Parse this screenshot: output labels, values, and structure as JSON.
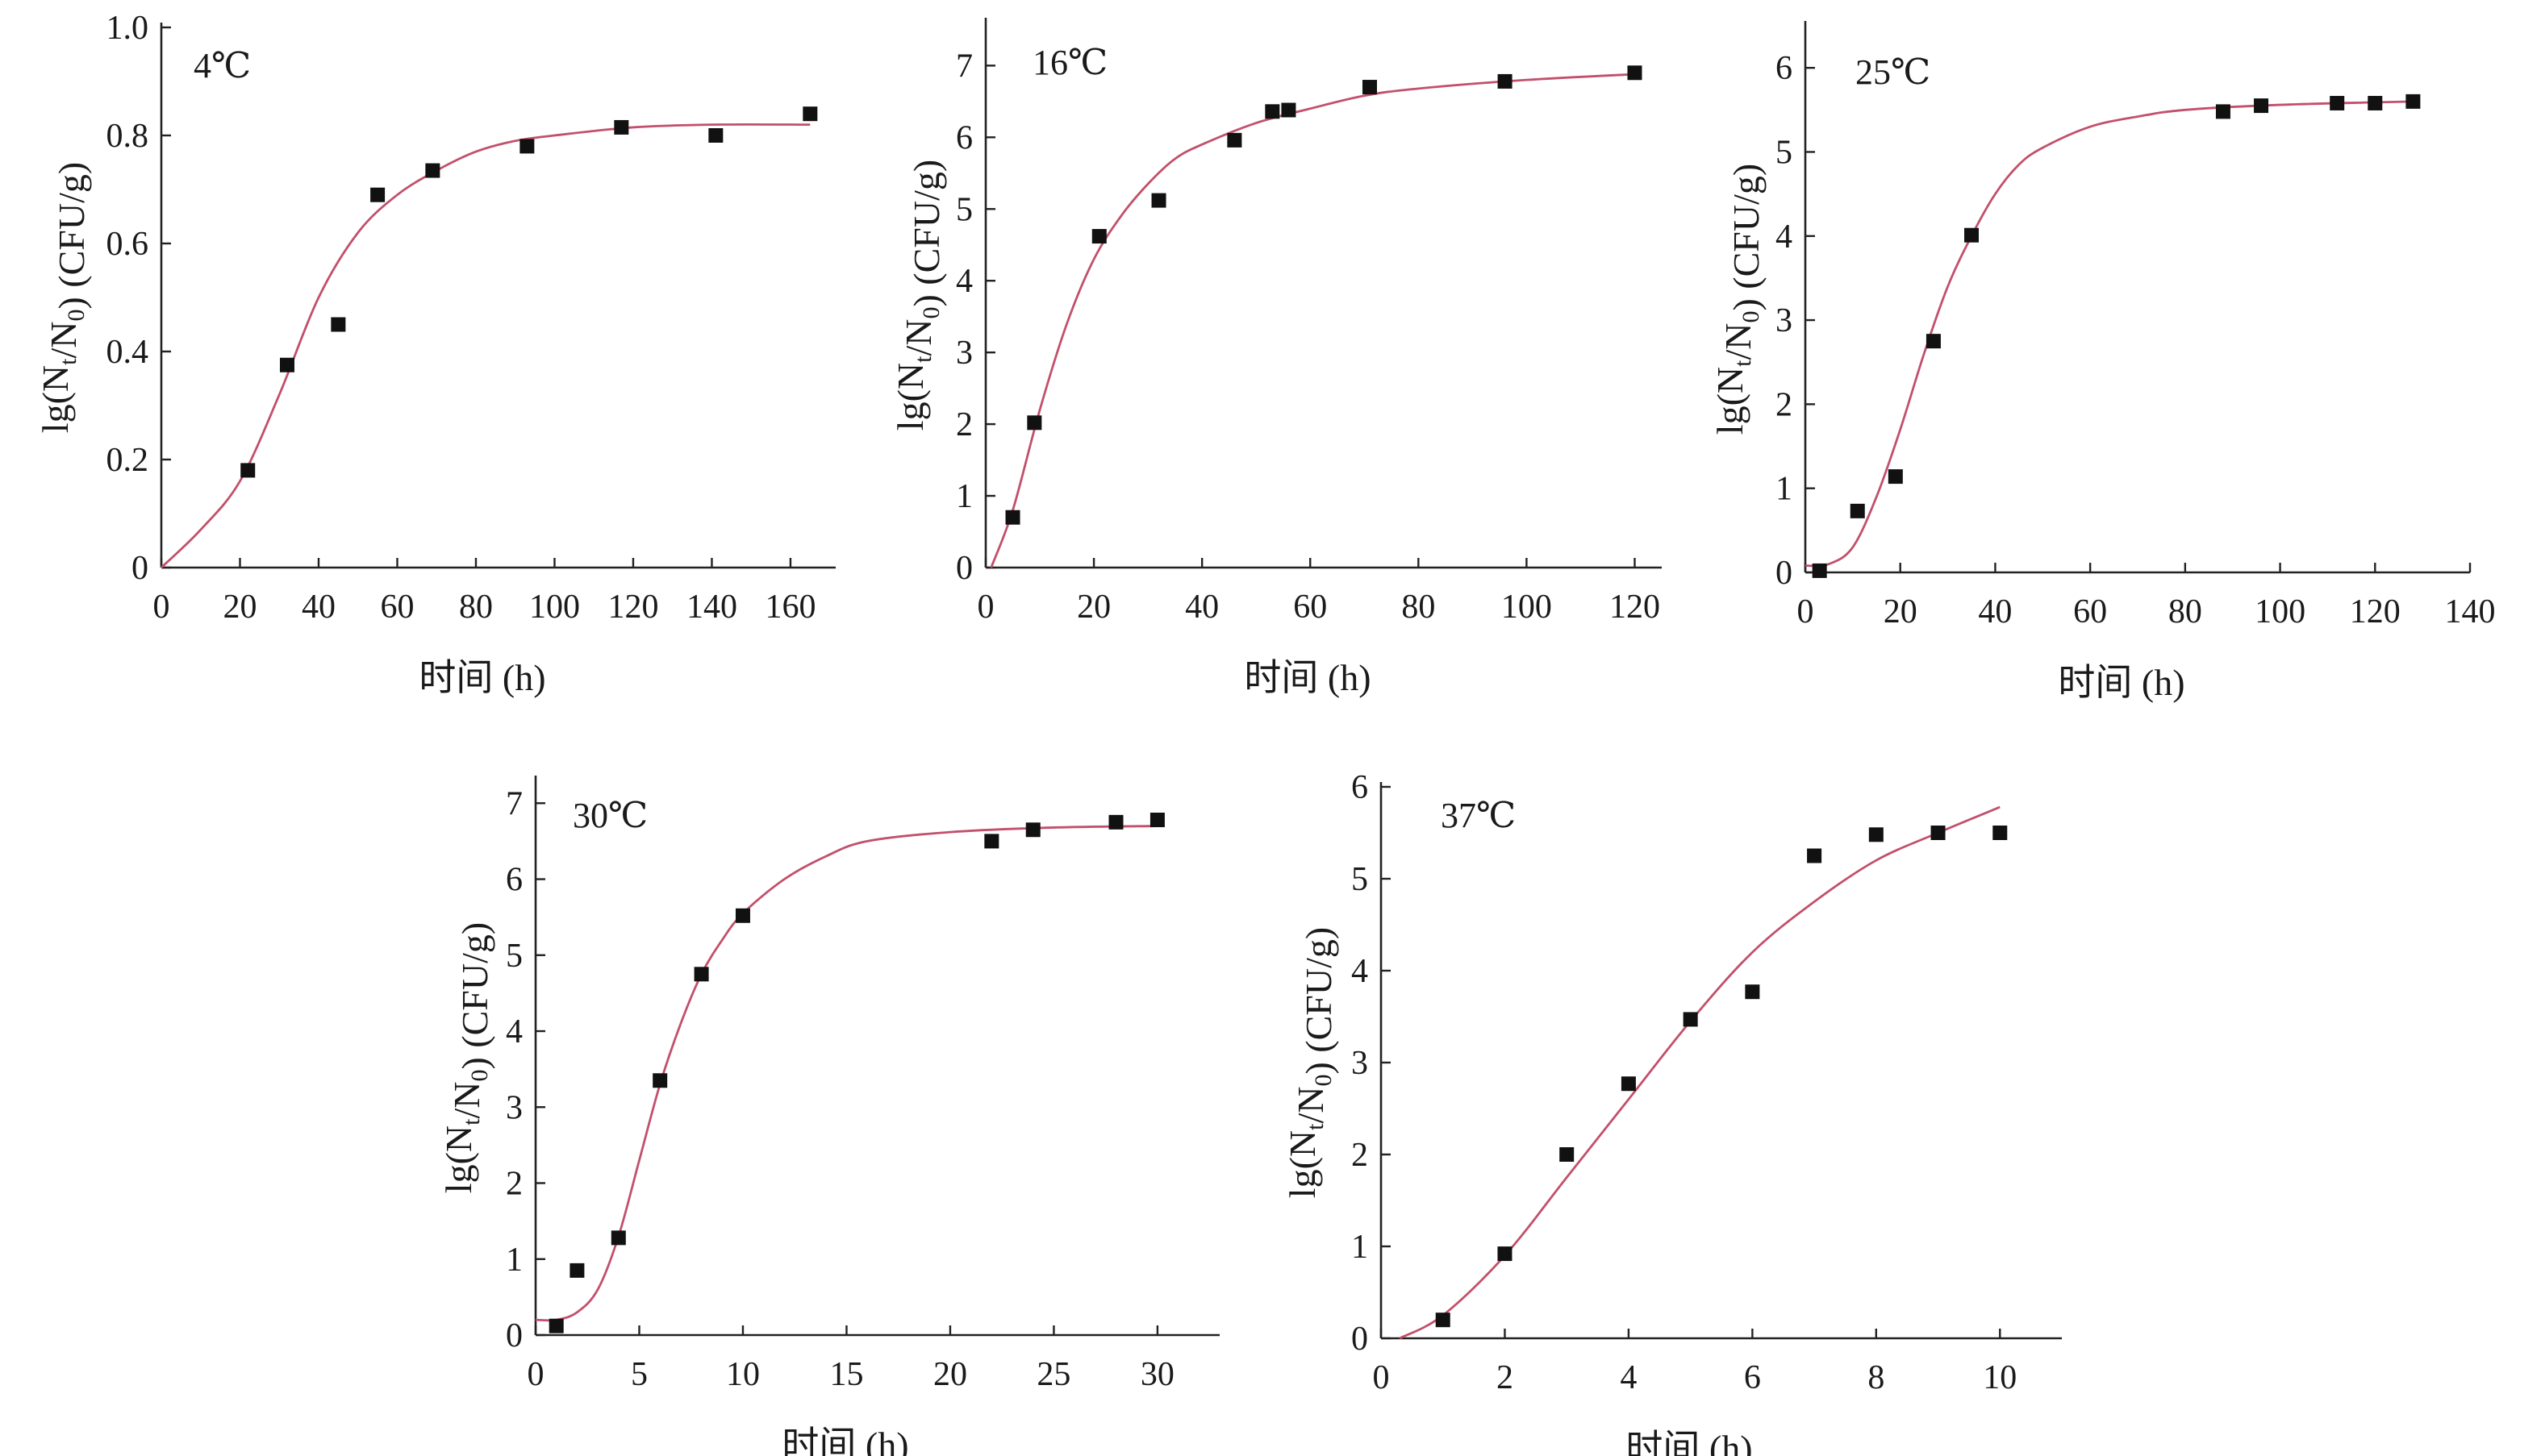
{
  "colors": {
    "fit_curve": "#c2506b",
    "marker": "#111111",
    "axis": "#222222"
  },
  "chart_data": [
    {
      "type": "scatter",
      "title": "4℃",
      "xlabel": "时间 (h)",
      "ylabel": "lg(Nt/N0) (CFU/g)",
      "xlim": [
        0,
        171.5
      ],
      "ylim": [
        0,
        1.0
      ],
      "xticks": [
        0,
        20,
        40,
        60,
        80,
        100,
        120,
        140,
        160
      ],
      "yticks": [
        0,
        0.2,
        0.4,
        0.6,
        0.8,
        1.0
      ],
      "ytick_labels": [
        "0",
        "0.2",
        "0.4",
        "0.6",
        "0.8",
        "1.0"
      ],
      "points": {
        "x": [
          22,
          32,
          45,
          55,
          69,
          93,
          117,
          141,
          165
        ],
        "y": [
          0.18,
          0.375,
          0.45,
          0.69,
          0.735,
          0.78,
          0.815,
          0.8,
          0.84
        ]
      },
      "fit": {
        "x": [
          0,
          10,
          20,
          30,
          40,
          50,
          60,
          70,
          80,
          90,
          100,
          120,
          140,
          165
        ],
        "y": [
          0,
          0.07,
          0.16,
          0.32,
          0.5,
          0.62,
          0.69,
          0.735,
          0.77,
          0.79,
          0.8,
          0.815,
          0.82,
          0.82
        ]
      }
    },
    {
      "type": "scatter",
      "title": "16℃",
      "xlabel": "时间 (h)",
      "ylabel": "lg(Nt/N0) (CFU/g)",
      "xlim": [
        0,
        125
      ],
      "ylim": [
        0,
        7.6
      ],
      "xticks": [
        0,
        20,
        40,
        60,
        80,
        100,
        120
      ],
      "yticks": [
        0,
        1,
        2,
        3,
        4,
        5,
        6,
        7
      ],
      "ytick_labels": [
        "0",
        "1",
        "2",
        "3",
        "4",
        "5",
        "6",
        "7"
      ],
      "points": {
        "x": [
          5,
          9,
          21,
          32,
          46,
          53,
          56,
          71,
          96,
          120
        ],
        "y": [
          0.7,
          2.02,
          4.62,
          5.12,
          5.96,
          6.36,
          6.38,
          6.7,
          6.78,
          6.9
        ]
      },
      "fit": {
        "x": [
          1,
          5,
          10,
          15,
          20,
          25,
          30,
          35,
          40,
          50,
          60,
          70,
          80,
          100,
          120
        ],
        "y": [
          0,
          0.8,
          2.2,
          3.4,
          4.3,
          4.9,
          5.35,
          5.7,
          5.9,
          6.2,
          6.4,
          6.58,
          6.68,
          6.8,
          6.88
        ]
      }
    },
    {
      "type": "scatter",
      "title": "25℃",
      "xlabel": "时间 (h)",
      "ylabel": "lg(Nt/N0) (CFU/g)",
      "xlim": [
        0,
        140
      ],
      "ylim": [
        0,
        6.5
      ],
      "xticks": [
        0,
        20,
        40,
        60,
        80,
        100,
        120,
        140
      ],
      "yticks": [
        0,
        1,
        2,
        3,
        4,
        5,
        6
      ],
      "ytick_labels": [
        "0",
        "1",
        "2",
        "3",
        "4",
        "5",
        "6"
      ],
      "points": {
        "x": [
          3,
          11,
          19,
          27,
          35,
          88,
          96,
          112,
          120,
          128
        ],
        "y": [
          0.02,
          0.73,
          1.14,
          2.75,
          4.01,
          5.48,
          5.55,
          5.58,
          5.58,
          5.6
        ]
      },
      "fit": {
        "x": [
          0,
          5,
          10,
          15,
          20,
          25,
          30,
          35,
          40,
          45,
          50,
          60,
          70,
          80,
          100,
          128
        ],
        "y": [
          0.08,
          0.1,
          0.3,
          0.9,
          1.7,
          2.6,
          3.4,
          4.0,
          4.5,
          4.85,
          5.05,
          5.3,
          5.42,
          5.5,
          5.56,
          5.6
        ]
      }
    },
    {
      "type": "scatter",
      "title": "30℃",
      "xlabel": "时间 (h)",
      "ylabel": "lg(Nt/N0) (CFU/g)",
      "xlim": [
        0,
        33
      ],
      "ylim": [
        0,
        7.3
      ],
      "xticks": [
        0,
        5,
        10,
        15,
        20,
        25,
        30
      ],
      "yticks": [
        0,
        1,
        2,
        3,
        4,
        5,
        6,
        7
      ],
      "ytick_labels": [
        "0",
        "1",
        "2",
        "3",
        "4",
        "5",
        "6",
        "7"
      ],
      "points": {
        "x": [
          1,
          2,
          4,
          6,
          8,
          10,
          22,
          24,
          28,
          30
        ],
        "y": [
          0.12,
          0.85,
          1.28,
          3.35,
          4.75,
          5.52,
          6.5,
          6.65,
          6.75,
          6.78
        ]
      },
      "fit": {
        "x": [
          0,
          1,
          2,
          3,
          4,
          5,
          6,
          7,
          8,
          9,
          10,
          12,
          14,
          16,
          20,
          25,
          30
        ],
        "y": [
          0.2,
          0.2,
          0.3,
          0.6,
          1.3,
          2.3,
          3.3,
          4.1,
          4.75,
          5.2,
          5.55,
          6.0,
          6.3,
          6.5,
          6.62,
          6.68,
          6.7
        ]
      }
    },
    {
      "type": "scatter",
      "title": "37℃",
      "xlabel": "时间 (h)",
      "ylabel": "lg(Nt/N0) (CFU/g)",
      "xlim": [
        0,
        11
      ],
      "ylim": [
        0,
        6.0
      ],
      "xticks": [
        0,
        2,
        4,
        6,
        8,
        10
      ],
      "yticks": [
        0,
        1,
        2,
        3,
        4,
        5,
        6
      ],
      "ytick_labels": [
        "0",
        "1",
        "2",
        "3",
        "4",
        "5",
        "6"
      ],
      "points": {
        "x": [
          1,
          2,
          3,
          4,
          5,
          6,
          7,
          8,
          9,
          10
        ],
        "y": [
          0.2,
          0.92,
          2.0,
          2.77,
          3.47,
          3.77,
          5.25,
          5.48,
          5.5,
          5.5
        ]
      },
      "fit": {
        "x": [
          0.3,
          1,
          2,
          3,
          4,
          5,
          6,
          7,
          8,
          9,
          10
        ],
        "y": [
          0,
          0.25,
          0.9,
          1.75,
          2.6,
          3.45,
          4.2,
          4.75,
          5.2,
          5.5,
          5.78
        ]
      }
    }
  ]
}
